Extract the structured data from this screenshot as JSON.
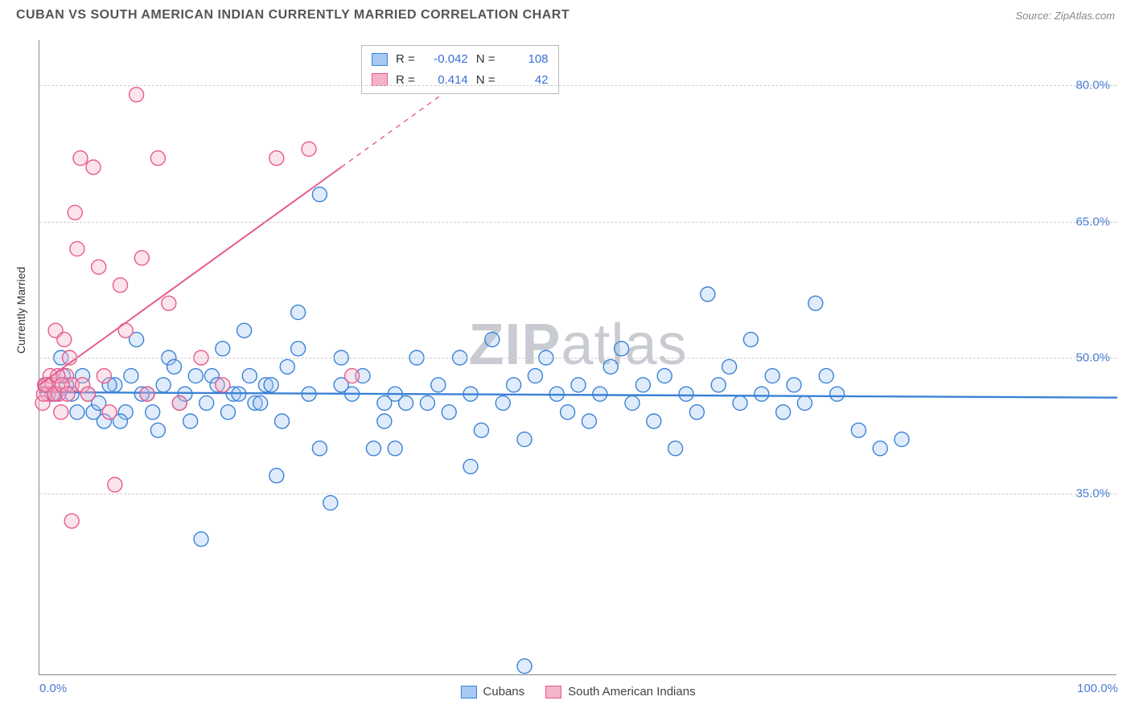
{
  "title": "CUBAN VS SOUTH AMERICAN INDIAN CURRENTLY MARRIED CORRELATION CHART",
  "source": "Source: ZipAtlas.com",
  "yaxis_title": "Currently Married",
  "watermark_bold": "ZIP",
  "watermark_rest": "atlas",
  "chart": {
    "type": "scatter-correlation",
    "xlim": [
      0,
      100
    ],
    "ylim": [
      15,
      85
    ],
    "x_ticks": [
      {
        "v": 0,
        "label": "0.0%"
      },
      {
        "v": 100,
        "label": "100.0%"
      }
    ],
    "y_ticks": [
      {
        "v": 35,
        "label": "35.0%"
      },
      {
        "v": 50,
        "label": "50.0%"
      },
      {
        "v": 65,
        "label": "65.0%"
      },
      {
        "v": 80,
        "label": "80.0%"
      }
    ],
    "grid_color": "#cccccc",
    "background_color": "#ffffff",
    "marker_radius": 9,
    "marker_fill_opacity": 0.35,
    "marker_stroke_width": 1.4,
    "series": [
      {
        "name": "Cubans",
        "color_stroke": "#3b82d6",
        "color_fill": "#a7c9f3",
        "R": "-0.042",
        "N": "108",
        "trend": {
          "x1": 0,
          "y1": 46.2,
          "x2": 100,
          "y2": 45.6,
          "stroke_width": 2.4,
          "dash_from_x": null
        },
        "points": [
          [
            26,
            68
          ],
          [
            2,
            50
          ],
          [
            4,
            48
          ],
          [
            6,
            43
          ],
          [
            7,
            47
          ],
          [
            8,
            44
          ],
          [
            9,
            52
          ],
          [
            10,
            46
          ],
          [
            11,
            42
          ],
          [
            12,
            50
          ],
          [
            13,
            45
          ],
          [
            14,
            43
          ],
          [
            15,
            30
          ],
          [
            16,
            48
          ],
          [
            17,
            51
          ],
          [
            18,
            46
          ],
          [
            19,
            53
          ],
          [
            20,
            45
          ],
          [
            21,
            47
          ],
          [
            22,
            37
          ],
          [
            23,
            49
          ],
          [
            24,
            55
          ],
          [
            25,
            46
          ],
          [
            26,
            40
          ],
          [
            27,
            34
          ],
          [
            28,
            50
          ],
          [
            29,
            46
          ],
          [
            30,
            48
          ],
          [
            31,
            40
          ],
          [
            32,
            43
          ],
          [
            33,
            46
          ],
          [
            34,
            45
          ],
          [
            35,
            50
          ],
          [
            36,
            45
          ],
          [
            37,
            47
          ],
          [
            38,
            44
          ],
          [
            39,
            50
          ],
          [
            40,
            46
          ],
          [
            41,
            42
          ],
          [
            42,
            52
          ],
          [
            43,
            45
          ],
          [
            44,
            47
          ],
          [
            45,
            16
          ],
          [
            46,
            48
          ],
          [
            47,
            50
          ],
          [
            48,
            46
          ],
          [
            49,
            44
          ],
          [
            50,
            47
          ],
          [
            51,
            43
          ],
          [
            52,
            46
          ],
          [
            53,
            49
          ],
          [
            54,
            51
          ],
          [
            55,
            45
          ],
          [
            56,
            47
          ],
          [
            57,
            43
          ],
          [
            58,
            48
          ],
          [
            59,
            40
          ],
          [
            60,
            46
          ],
          [
            61,
            44
          ],
          [
            62,
            57
          ],
          [
            63,
            47
          ],
          [
            64,
            49
          ],
          [
            65,
            45
          ],
          [
            66,
            52
          ],
          [
            67,
            46
          ],
          [
            68,
            48
          ],
          [
            69,
            44
          ],
          [
            70,
            47
          ],
          [
            71,
            45
          ],
          [
            72,
            56
          ],
          [
            73,
            48
          ],
          [
            74,
            46
          ],
          [
            76,
            42
          ],
          [
            78,
            40
          ],
          [
            80,
            41
          ],
          [
            3,
            46
          ],
          [
            5,
            44
          ],
          [
            2.5,
            47
          ],
          [
            1.5,
            46
          ],
          [
            0.8,
            47
          ],
          [
            1.2,
            46
          ],
          [
            2.2,
            48
          ],
          [
            3.5,
            44
          ],
          [
            4.5,
            46
          ],
          [
            5.5,
            45
          ],
          [
            6.5,
            47
          ],
          [
            7.5,
            43
          ],
          [
            8.5,
            48
          ],
          [
            9.5,
            46
          ],
          [
            10.5,
            44
          ],
          [
            11.5,
            47
          ],
          [
            12.5,
            49
          ],
          [
            13.5,
            46
          ],
          [
            14.5,
            48
          ],
          [
            15.5,
            45
          ],
          [
            16.5,
            47
          ],
          [
            17.5,
            44
          ],
          [
            18.5,
            46
          ],
          [
            19.5,
            48
          ],
          [
            20.5,
            45
          ],
          [
            21.5,
            47
          ],
          [
            22.5,
            43
          ],
          [
            33,
            40
          ],
          [
            40,
            38
          ],
          [
            45,
            41
          ],
          [
            24,
            51
          ],
          [
            28,
            47
          ],
          [
            32,
            45
          ]
        ]
      },
      {
        "name": "South American Indians",
        "color_stroke": "#e85a8a",
        "color_fill": "#f5b3c8",
        "R": "0.414",
        "N": "42",
        "trend": {
          "x1": 0,
          "y1": 47,
          "x2": 42,
          "y2": 83,
          "stroke_width": 2,
          "dash_from_x": 28
        },
        "points": [
          [
            0.5,
            47
          ],
          [
            0.8,
            46
          ],
          [
            1,
            48
          ],
          [
            1.2,
            47
          ],
          [
            1.5,
            53
          ],
          [
            1.8,
            46
          ],
          [
            2,
            44
          ],
          [
            2.3,
            52
          ],
          [
            2.5,
            48
          ],
          [
            2.8,
            50
          ],
          [
            3,
            47
          ],
          [
            3.3,
            66
          ],
          [
            3.5,
            62
          ],
          [
            3.8,
            72
          ],
          [
            4,
            47
          ],
          [
            4.5,
            46
          ],
          [
            5,
            71
          ],
          [
            5.5,
            60
          ],
          [
            6,
            48
          ],
          [
            6.5,
            44
          ],
          [
            7,
            36
          ],
          [
            7.5,
            58
          ],
          [
            8,
            53
          ],
          [
            9,
            79
          ],
          [
            9.5,
            61
          ],
          [
            10,
            46
          ],
          [
            11,
            72
          ],
          [
            12,
            56
          ],
          [
            13,
            45
          ],
          [
            3,
            32
          ],
          [
            15,
            50
          ],
          [
            17,
            47
          ],
          [
            22,
            72
          ],
          [
            25,
            73
          ],
          [
            29,
            48
          ],
          [
            0.3,
            45
          ],
          [
            0.4,
            46
          ],
          [
            0.6,
            47
          ],
          [
            1.4,
            46
          ],
          [
            1.7,
            48
          ],
          [
            2.1,
            47
          ],
          [
            2.6,
            46
          ]
        ]
      }
    ]
  },
  "legend": {
    "series1_label": "Cubans",
    "series2_label": "South American Indians"
  }
}
